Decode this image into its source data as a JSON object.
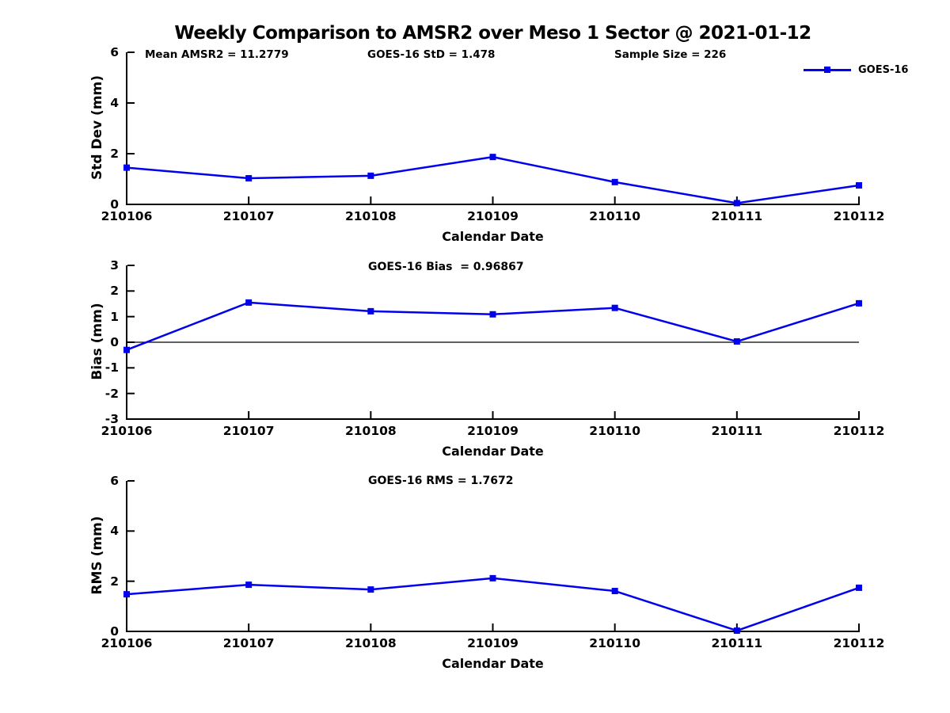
{
  "title": "Weekly Comparison to AMSR2 over Meso 1 Sector @ 2021-01-12",
  "chart_data": {
    "type": "line",
    "x_categories": [
      "210106",
      "210107",
      "210108",
      "210109",
      "210110",
      "210111",
      "210112"
    ],
    "xlabel": "Calendar Date",
    "line_color": "#0000ee",
    "legend": {
      "label": "GOES-16",
      "marker": "filled-square",
      "position": "top-right"
    },
    "grid": false,
    "subplots": [
      {
        "name": "std-dev",
        "ylabel": "Std Dev (mm)",
        "ylim": [
          0,
          6
        ],
        "yticks": [
          0,
          2,
          4,
          6
        ],
        "values": [
          1.45,
          1.03,
          1.13,
          1.87,
          0.88,
          0.05,
          0.75
        ],
        "annotations": [
          "Mean AMSR2 = 11.2779",
          "GOES-16 StD = 1.478",
          "Sample Size = 226"
        ]
      },
      {
        "name": "bias",
        "title": "GOES-16 Bias  = 0.96867",
        "ylabel": "Bias (mm)",
        "ylim": [
          -3,
          3
        ],
        "yticks": [
          -3,
          -2,
          -1,
          0,
          1,
          2,
          3
        ],
        "zero_line": true,
        "values": [
          -0.3,
          1.55,
          1.21,
          1.09,
          1.34,
          0.03,
          1.52
        ]
      },
      {
        "name": "rms",
        "title": "GOES-16 RMS = 1.7672",
        "ylabel": "RMS (mm)",
        "ylim": [
          0,
          6
        ],
        "yticks": [
          0,
          2,
          4,
          6
        ],
        "values": [
          1.48,
          1.86,
          1.67,
          2.12,
          1.61,
          0.03,
          1.74
        ]
      }
    ]
  }
}
